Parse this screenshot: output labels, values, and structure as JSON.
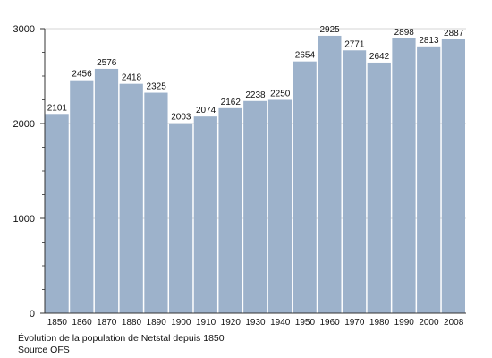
{
  "chart_data": {
    "type": "bar",
    "categories": [
      "1850",
      "1860",
      "1870",
      "1880",
      "1890",
      "1900",
      "1910",
      "1920",
      "1930",
      "1940",
      "1950",
      "1960",
      "1970",
      "1980",
      "1990",
      "2000",
      "2008"
    ],
    "values": [
      2101,
      2456,
      2576,
      2418,
      2325,
      2003,
      2074,
      2162,
      2238,
      2250,
      2654,
      2925,
      2771,
      2642,
      2898,
      2813,
      2887
    ],
    "ylim": [
      0,
      3000
    ],
    "yticks": [
      "0",
      "1000",
      "2000",
      "3000"
    ],
    "grid": true,
    "bar_color": "#9db2cb",
    "data_labels": true
  },
  "captions": {
    "line1": "Évolution de la population de Netstal depuis 1850",
    "line2": "Source OFS"
  }
}
